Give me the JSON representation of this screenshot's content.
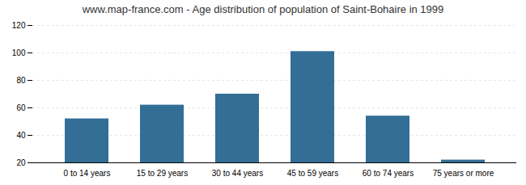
{
  "chart_data": {
    "type": "bar",
    "title": "www.map-france.com - Age distribution of population of Saint-Bohaire in 1999",
    "categories": [
      "0 to 14 years",
      "15 to 29 years",
      "30 to 44 years",
      "45 to 59 years",
      "60 to 74 years",
      "75 years or more"
    ],
    "values": [
      52,
      62,
      70,
      101,
      54,
      22
    ],
    "color": "#336e96",
    "ylim": [
      20,
      120
    ],
    "yticks": [
      20,
      40,
      60,
      80,
      100,
      120
    ],
    "grid": true
  }
}
